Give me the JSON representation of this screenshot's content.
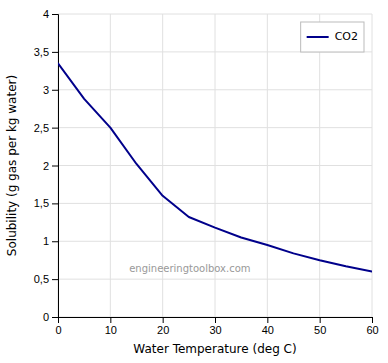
{
  "chart_data": {
    "type": "line",
    "xlabel": "Water Temperature (deg C)",
    "ylabel": "Solubility (g gas per kg water)",
    "x": [
      0,
      5,
      10,
      15,
      20,
      25,
      30,
      35,
      40,
      45,
      50,
      55,
      60
    ],
    "series": [
      {
        "name": "CO2",
        "color": "#00008B",
        "values": [
          3.35,
          2.88,
          2.5,
          2.02,
          1.6,
          1.32,
          1.18,
          1.05,
          0.95,
          0.84,
          0.75,
          0.67,
          0.6
        ]
      }
    ],
    "xlim": [
      0,
      60
    ],
    "ylim": [
      0,
      4
    ],
    "xticks": [
      0,
      10,
      20,
      30,
      40,
      50,
      60
    ],
    "yticks": [
      0,
      {
        "value": 0.5,
        "label": "0,5"
      },
      1,
      {
        "value": 1.5,
        "label": "1,5"
      },
      2,
      {
        "value": 2.5,
        "label": "2,5"
      },
      3,
      {
        "value": 3.5,
        "label": "3,5"
      },
      4
    ],
    "grid": true,
    "legend": "upper right",
    "annotations": [
      "engineeringtoolbox.com"
    ]
  }
}
